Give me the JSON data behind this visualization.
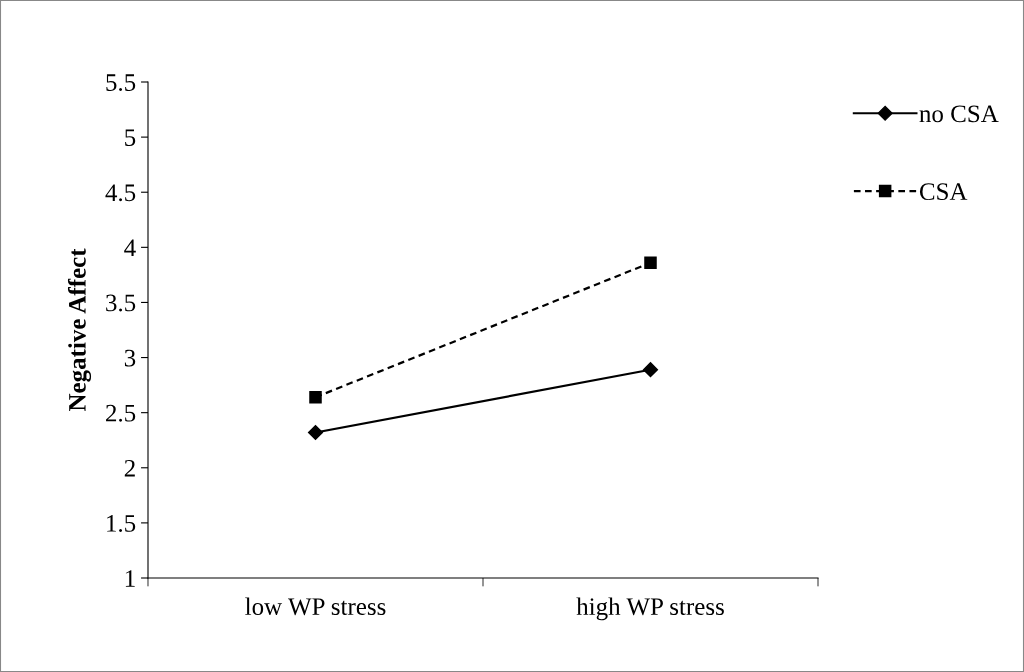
{
  "chart_data": {
    "type": "line",
    "ylabel": "Negative Affect",
    "categories": [
      "low WP stress",
      "high WP stress"
    ],
    "series": [
      {
        "name": "no CSA",
        "color": "#000000",
        "values": [
          2.32,
          2.89
        ],
        "marker": "diamond",
        "line_style": "solid"
      },
      {
        "name": "CSA",
        "color": "#000000",
        "values": [
          2.64,
          3.86
        ],
        "marker": "square",
        "line_style": "dashed"
      }
    ],
    "ylim": [
      1,
      5.5
    ],
    "yticks": [
      1,
      1.5,
      2,
      2.5,
      3,
      3.5,
      4,
      4.5,
      5,
      5.5
    ],
    "grid": false,
    "legend": "top right"
  }
}
